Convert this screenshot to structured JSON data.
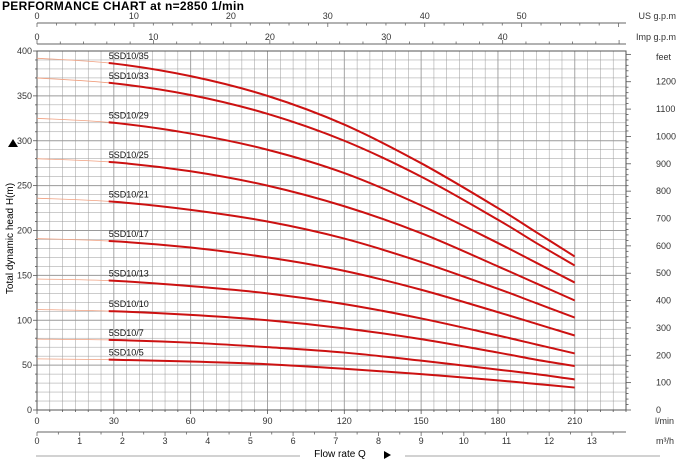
{
  "title": "PERFORMANCE CHART  at n=2850 1/min",
  "chart_data": {
    "type": "line",
    "title": "PERFORMANCE CHART  at n=2850 1/min",
    "xlabel": "Flow rate Q",
    "ylabel": "Total dynamic head H(m)",
    "xlim": [
      0,
      230
    ],
    "ylim": [
      0,
      400
    ],
    "y_ticks": [
      0,
      50,
      100,
      150,
      200,
      250,
      300,
      350,
      400
    ],
    "x_ticks_lmin": [
      0,
      30,
      60,
      90,
      120,
      150,
      180,
      210
    ],
    "x_unit_lmin": "l/min",
    "x_ticks_m3h": [
      0,
      1,
      2,
      3,
      4,
      5,
      6,
      7,
      8,
      9,
      10,
      11,
      12,
      13
    ],
    "x_unit_m3h": "m³/h",
    "top_us_ticks": [
      0,
      10,
      20,
      30,
      40,
      50
    ],
    "top_us_unit": "US g.p.m",
    "top_imp_ticks": [
      0,
      10,
      20,
      30,
      40
    ],
    "top_imp_unit": "Imp g.p.m",
    "right_ticks_feet": [
      0,
      100,
      200,
      300,
      400,
      500,
      600,
      700,
      800,
      900,
      1000,
      1100,
      1200
    ],
    "right_unit": "feet",
    "grid": true,
    "colors": {
      "curve": "#cc1111",
      "faint_curve": "#f0a080",
      "grid": "#9a9a9a",
      "axis": "#555555"
    },
    "series": [
      {
        "name": "5SD10/35",
        "x": [
          0,
          30,
          60,
          90,
          120,
          150,
          180,
          195,
          210
        ],
        "y": [
          392,
          386,
          372,
          350,
          318,
          275,
          225,
          198,
          171
        ]
      },
      {
        "name": "5SD10/33",
        "x": [
          0,
          30,
          60,
          90,
          120,
          150,
          180,
          195,
          210
        ],
        "y": [
          370,
          364,
          351,
          330,
          300,
          260,
          212,
          186,
          161
        ]
      },
      {
        "name": "5SD10/29",
        "x": [
          0,
          30,
          60,
          90,
          120,
          150,
          180,
          195,
          210
        ],
        "y": [
          325,
          320,
          308,
          290,
          264,
          228,
          186,
          164,
          142
        ]
      },
      {
        "name": "5SD10/25",
        "x": [
          0,
          30,
          60,
          90,
          120,
          150,
          180,
          195,
          210
        ],
        "y": [
          280,
          276,
          266,
          250,
          227,
          197,
          160,
          141,
          122
        ]
      },
      {
        "name": "5SD10/21",
        "x": [
          0,
          30,
          60,
          90,
          120,
          150,
          180,
          195,
          210
        ],
        "y": [
          236,
          232,
          223,
          210,
          191,
          165,
          135,
          119,
          103
        ]
      },
      {
        "name": "5SD10/17",
        "x": [
          0,
          30,
          60,
          90,
          120,
          150,
          180,
          195,
          210
        ],
        "y": [
          191,
          188,
          181,
          170,
          155,
          134,
          109,
          96,
          83
        ]
      },
      {
        "name": "5SD10/13",
        "x": [
          0,
          30,
          60,
          90,
          120,
          150,
          180,
          195,
          210
        ],
        "y": [
          146,
          144,
          138,
          130,
          118,
          102,
          83,
          73,
          63
        ]
      },
      {
        "name": "5SD10/10",
        "x": [
          0,
          30,
          60,
          90,
          120,
          150,
          180,
          195,
          210
        ],
        "y": [
          112,
          110,
          106,
          100,
          91,
          79,
          64,
          56,
          49
        ]
      },
      {
        "name": "5SD10/7",
        "x": [
          0,
          30,
          60,
          90,
          120,
          150,
          180,
          195,
          210
        ],
        "y": [
          79,
          78,
          75,
          70,
          64,
          55,
          45,
          40,
          34
        ]
      },
      {
        "name": "5SD10/5",
        "x": [
          0,
          30,
          60,
          90,
          120,
          150,
          180,
          195,
          210
        ],
        "y": [
          57,
          56,
          54,
          51,
          46,
          40,
          33,
          29,
          25
        ]
      }
    ]
  }
}
